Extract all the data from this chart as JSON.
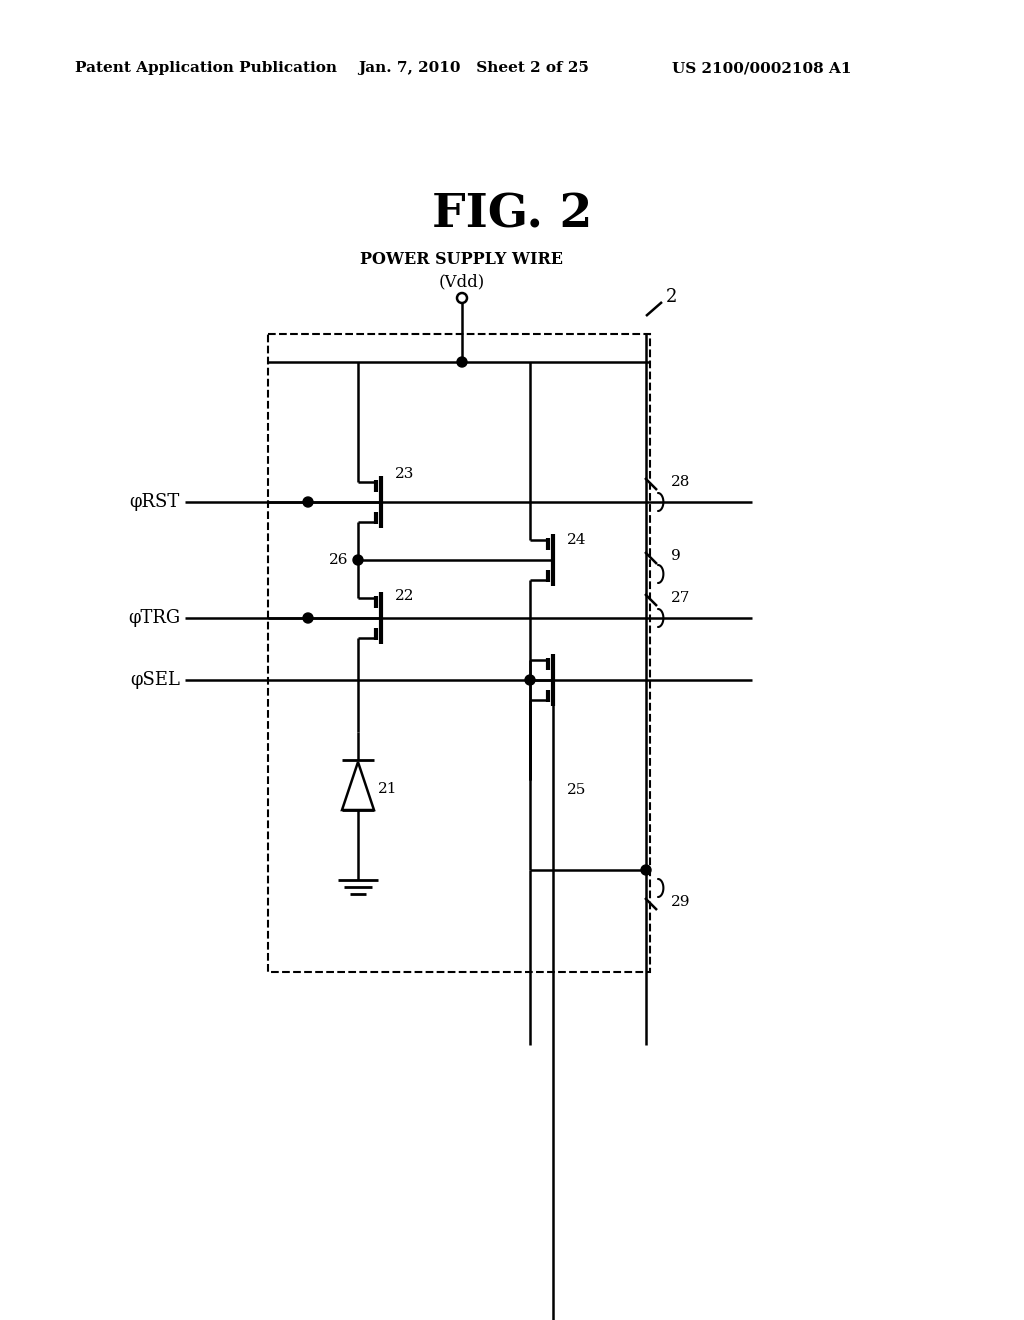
{
  "header_left": "Patent Application Publication",
  "header_mid": "Jan. 7, 2010   Sheet 2 of 25",
  "header_right": "US 2100/0002108 A1",
  "fig_title": "FIG. 2",
  "power_label_top": "POWER SUPPLY WIRE",
  "power_label_bot": "(Vdd)",
  "label_rst": "φRST",
  "label_trg": "φTRG",
  "label_sel": "φSEL",
  "bg_color": "#ffffff"
}
